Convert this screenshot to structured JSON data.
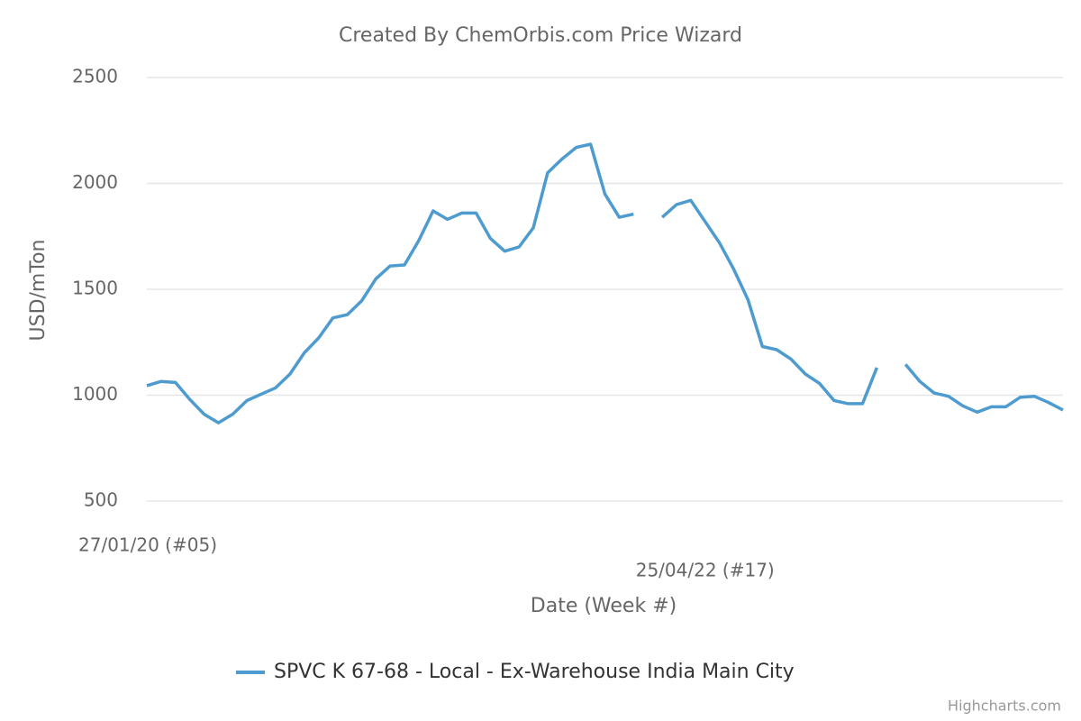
{
  "chart_data": {
    "type": "line",
    "title": "Created By ChemOrbis.com Price Wizard",
    "y_label": "USD/mTon",
    "x_label": "Date (Week #)",
    "categories": [
      "27/01/20 (#05)",
      null,
      null,
      null,
      null,
      null,
      null,
      null,
      null,
      null,
      null,
      null,
      null,
      null,
      null,
      null,
      null,
      null,
      null,
      null,
      null,
      null,
      null,
      null,
      null,
      null,
      null,
      null,
      null,
      null,
      null,
      null,
      null,
      null,
      null,
      null,
      null,
      null,
      null,
      "25/04/22 (#17)",
      null,
      null,
      null,
      null,
      null,
      null,
      null,
      null,
      null,
      null,
      null,
      null,
      null,
      null,
      null,
      null,
      null,
      null,
      null,
      null,
      null,
      null,
      null,
      null,
      null
    ],
    "series": [
      {
        "name": "SPVC K 67-68 - Local - Ex-Warehouse India Main City",
        "color": "#4e9bd0",
        "values": [
          1045,
          1065,
          1060,
          980,
          910,
          870,
          910,
          975,
          1005,
          1035,
          1100,
          1200,
          1270,
          1365,
          1380,
          1445,
          1550,
          1610,
          1615,
          1730,
          1870,
          1830,
          1860,
          1860,
          1740,
          1680,
          1700,
          1790,
          2050,
          2115,
          2170,
          2185,
          1950,
          1840,
          1855,
          null,
          1840,
          1900,
          1920,
          1820,
          1720,
          1595,
          1450,
          1230,
          1215,
          1170,
          1100,
          1055,
          975,
          960,
          960,
          1130,
          null,
          1145,
          1065,
          1010,
          995,
          950,
          920,
          945,
          945,
          990,
          995,
          965,
          930
        ]
      }
    ],
    "ylim": [
      500,
      2500
    ],
    "yticks": [
      500,
      1000,
      1500,
      2000,
      2500
    ],
    "grid": true,
    "credit": "Highcharts.com"
  }
}
